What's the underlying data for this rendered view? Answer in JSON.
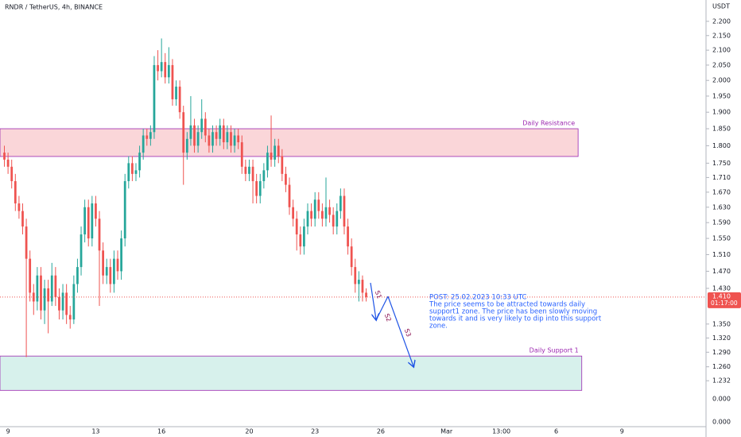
{
  "chart_data": {
    "type": "candlestick",
    "title": "RNDR / TetherUS, 4h, BINANCE",
    "y_axis_unit": "USDT",
    "log_scale": true,
    "grid": true,
    "xlim": [
      -2.2,
      191
    ],
    "ylim": [
      1.144,
      2.277
    ],
    "xticks": [
      {
        "value": 0,
        "label": "9"
      },
      {
        "value": 24,
        "label": "13"
      },
      {
        "value": 42,
        "label": "16"
      },
      {
        "value": 66,
        "label": "20"
      },
      {
        "value": 84,
        "label": "23"
      },
      {
        "value": 102,
        "label": "26"
      },
      {
        "value": 120,
        "label": "Mar"
      },
      {
        "value": 135,
        "label": "13:00"
      },
      {
        "value": 150,
        "label": "6"
      },
      {
        "value": 168,
        "label": "9"
      }
    ],
    "yticks": [
      {
        "value": 2.2,
        "label": "2.200"
      },
      {
        "value": 2.15,
        "label": "2.150"
      },
      {
        "value": 2.1,
        "label": "2.100"
      },
      {
        "value": 2.05,
        "label": "2.050"
      },
      {
        "value": 2.0,
        "label": "2.000"
      },
      {
        "value": 1.95,
        "label": "1.950"
      },
      {
        "value": 1.9,
        "label": "1.900"
      },
      {
        "value": 1.85,
        "label": "1.850"
      },
      {
        "value": 1.8,
        "label": "1.800"
      },
      {
        "value": 1.75,
        "label": "1.750"
      },
      {
        "value": 1.71,
        "label": "1.710"
      },
      {
        "value": 1.67,
        "label": "1.670"
      },
      {
        "value": 1.63,
        "label": "1.630"
      },
      {
        "value": 1.59,
        "label": "1.590"
      },
      {
        "value": 1.55,
        "label": "1.550"
      },
      {
        "value": 1.51,
        "label": "1.510"
      },
      {
        "value": 1.47,
        "label": "1.470"
      },
      {
        "value": 1.43,
        "label": "1.430"
      },
      {
        "value": 1.35,
        "label": "1.350"
      },
      {
        "value": 1.32,
        "label": "1.320"
      },
      {
        "value": 1.29,
        "label": "1.290"
      },
      {
        "value": 1.26,
        "label": "1.260"
      },
      {
        "value": 1.232,
        "label": "1.232"
      }
    ],
    "extra_axis_labels": [
      "0.000",
      "0.000"
    ],
    "up_color": "#26a69a",
    "down_color": "#ef5350",
    "x": [
      -1,
      0,
      1,
      2,
      3,
      4,
      5,
      6,
      7,
      8,
      9,
      10,
      11,
      12,
      13,
      14,
      15,
      16,
      17,
      18,
      19,
      20,
      21,
      22,
      23,
      24,
      25,
      26,
      27,
      28,
      29,
      30,
      31,
      32,
      33,
      34,
      35,
      36,
      37,
      38,
      39,
      40,
      41,
      42,
      43,
      44,
      45,
      46,
      47,
      48,
      49,
      50,
      51,
      52,
      53,
      54,
      55,
      56,
      57,
      58,
      59,
      60,
      61,
      62,
      63,
      64,
      65,
      66,
      67,
      68,
      69,
      70,
      71,
      72,
      73,
      74,
      75,
      76,
      77,
      78,
      79,
      80,
      81,
      82,
      83,
      84,
      85,
      86,
      87,
      88,
      89,
      90,
      91,
      92,
      93,
      94,
      95,
      96,
      97,
      98
    ],
    "open": [
      1.78,
      1.76,
      1.74,
      1.7,
      1.64,
      1.62,
      1.58,
      1.5,
      1.42,
      1.4,
      1.46,
      1.38,
      1.43,
      1.4,
      1.46,
      1.41,
      1.38,
      1.42,
      1.37,
      1.36,
      1.44,
      1.48,
      1.56,
      1.63,
      1.55,
      1.64,
      1.6,
      1.52,
      1.46,
      1.48,
      1.44,
      1.5,
      1.47,
      1.55,
      1.7,
      1.75,
      1.72,
      1.73,
      1.78,
      1.83,
      1.82,
      1.84,
      2.05,
      2.03,
      2.06,
      2.01,
      2.05,
      1.94,
      1.98,
      1.9,
      1.78,
      1.82,
      1.86,
      1.8,
      1.84,
      1.88,
      1.83,
      1.8,
      1.84,
      1.82,
      1.86,
      1.81,
      1.84,
      1.8,
      1.83,
      1.81,
      1.74,
      1.72,
      1.74,
      1.7,
      1.66,
      1.7,
      1.73,
      1.78,
      1.76,
      1.8,
      1.77,
      1.72,
      1.69,
      1.63,
      1.6,
      1.56,
      1.53,
      1.58,
      1.62,
      1.6,
      1.65,
      1.62,
      1.6,
      1.63,
      1.61,
      1.58,
      1.62,
      1.66,
      1.58,
      1.53,
      1.48,
      1.44,
      1.45,
      1.42
    ],
    "high": [
      1.8,
      1.78,
      1.76,
      1.72,
      1.66,
      1.64,
      1.6,
      1.52,
      1.44,
      1.48,
      1.48,
      1.45,
      1.45,
      1.49,
      1.48,
      1.43,
      1.44,
      1.44,
      1.39,
      1.46,
      1.5,
      1.58,
      1.65,
      1.65,
      1.66,
      1.66,
      1.62,
      1.54,
      1.5,
      1.5,
      1.52,
      1.52,
      1.57,
      1.72,
      1.77,
      1.77,
      1.75,
      1.8,
      1.85,
      1.85,
      1.86,
      2.08,
      2.1,
      2.14,
      2.09,
      2.11,
      2.07,
      2.0,
      2.0,
      1.92,
      1.84,
      1.95,
      1.88,
      1.86,
      1.94,
      1.9,
      1.85,
      1.86,
      1.86,
      1.88,
      1.88,
      1.86,
      1.86,
      1.85,
      1.85,
      1.83,
      1.76,
      1.76,
      1.76,
      1.72,
      1.72,
      1.75,
      1.8,
      1.89,
      1.82,
      1.82,
      1.79,
      1.74,
      1.71,
      1.65,
      1.62,
      1.58,
      1.6,
      1.64,
      1.64,
      1.67,
      1.67,
      1.64,
      1.71,
      1.65,
      1.63,
      1.64,
      1.68,
      1.68,
      1.6,
      1.55,
      1.5,
      1.47,
      1.46,
      1.43
    ],
    "low": [
      1.74,
      1.72,
      1.68,
      1.62,
      1.6,
      1.56,
      1.28,
      1.4,
      1.37,
      1.38,
      1.36,
      1.35,
      1.33,
      1.39,
      1.39,
      1.36,
      1.36,
      1.35,
      1.34,
      1.35,
      1.42,
      1.46,
      1.54,
      1.53,
      1.53,
      1.58,
      1.39,
      1.44,
      1.44,
      1.42,
      1.42,
      1.45,
      1.45,
      1.53,
      1.68,
      1.7,
      1.7,
      1.71,
      1.76,
      1.8,
      1.8,
      1.82,
      2.0,
      2.01,
      1.99,
      1.99,
      1.92,
      1.92,
      1.88,
      1.69,
      1.76,
      1.8,
      1.78,
      1.78,
      1.82,
      1.81,
      1.78,
      1.78,
      1.8,
      1.8,
      1.79,
      1.79,
      1.78,
      1.78,
      1.79,
      1.72,
      1.7,
      1.7,
      1.64,
      1.64,
      1.64,
      1.68,
      1.71,
      1.74,
      1.74,
      1.75,
      1.7,
      1.67,
      1.61,
      1.58,
      1.52,
      1.51,
      1.51,
      1.56,
      1.58,
      1.58,
      1.6,
      1.58,
      1.58,
      1.59,
      1.56,
      1.56,
      1.6,
      1.56,
      1.51,
      1.46,
      1.42,
      1.4,
      1.4,
      1.4
    ],
    "close": [
      1.76,
      1.74,
      1.7,
      1.64,
      1.62,
      1.58,
      1.5,
      1.42,
      1.4,
      1.46,
      1.38,
      1.43,
      1.4,
      1.46,
      1.41,
      1.38,
      1.42,
      1.37,
      1.36,
      1.44,
      1.48,
      1.56,
      1.63,
      1.55,
      1.64,
      1.6,
      1.52,
      1.46,
      1.48,
      1.44,
      1.5,
      1.47,
      1.55,
      1.7,
      1.75,
      1.72,
      1.73,
      1.78,
      1.83,
      1.82,
      1.84,
      2.05,
      2.03,
      2.06,
      2.01,
      2.05,
      1.94,
      1.98,
      1.9,
      1.78,
      1.82,
      1.86,
      1.8,
      1.84,
      1.88,
      1.83,
      1.8,
      1.84,
      1.82,
      1.86,
      1.81,
      1.84,
      1.8,
      1.83,
      1.81,
      1.74,
      1.72,
      1.74,
      1.7,
      1.66,
      1.7,
      1.73,
      1.78,
      1.76,
      1.8,
      1.77,
      1.72,
      1.69,
      1.63,
      1.6,
      1.56,
      1.53,
      1.58,
      1.62,
      1.6,
      1.65,
      1.62,
      1.6,
      1.63,
      1.61,
      1.58,
      1.62,
      1.66,
      1.58,
      1.53,
      1.48,
      1.44,
      1.45,
      1.42,
      1.41
    ],
    "zones": [
      {
        "label": "Daily Resistance",
        "low": 1.769,
        "high": 1.85,
        "x_end": 156,
        "color": "#f8c8cc",
        "border": "#9c27b0"
      },
      {
        "label": "Daily Support 1",
        "low": 1.213,
        "high": 1.282,
        "x_end": 157,
        "color": "#c9ece6",
        "border": "#9c27b0"
      }
    ],
    "last_price": {
      "value": 1.41,
      "label": "1.410",
      "countdown": "01:17:00"
    },
    "arrow_labels": [
      "S1",
      "S2",
      "S3"
    ],
    "post_text": [
      "POST: 25.02.2023 10:33 UTC",
      "The price seems to be attracted towards daily",
      "support1 zone. The price has been slowly moving",
      "towards it and is very likely to dip into this support",
      "zone."
    ]
  }
}
